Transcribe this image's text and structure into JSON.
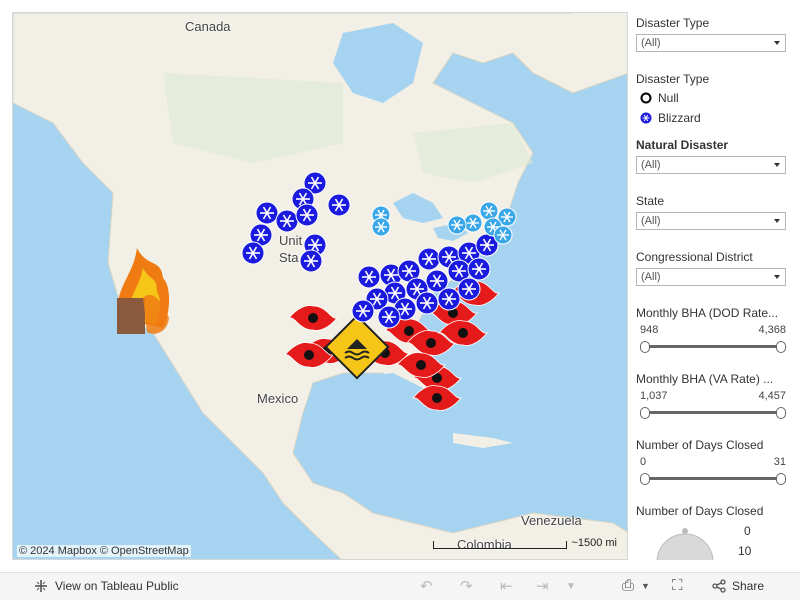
{
  "map": {
    "labels": {
      "canada": "Canada",
      "united_states_1": "Unit",
      "united_states_2": "Sta",
      "mexico": "Mexico",
      "venezuela": "Venezuela",
      "colombia": "Colombia"
    },
    "attribution": "© 2024 Mapbox © OpenStreetMap",
    "scale": "~1500 mi",
    "colors": {
      "water": "#a6d3ef",
      "land": "#f1efe6",
      "blizzard": "#1b1be0",
      "light_blizzard": "#3aa7e8",
      "hurricane": "#e51b1b"
    }
  },
  "panel": {
    "filter1": {
      "title": "Disaster Type",
      "value": "(All)"
    },
    "legend": {
      "title": "Disaster Type",
      "items": [
        {
          "label": "Null",
          "icon": "ring-icon"
        },
        {
          "label": "Blizzard",
          "icon": "snowflake-icon"
        }
      ]
    },
    "filter2": {
      "title": "Natural Disaster",
      "value": "(All)"
    },
    "filter3": {
      "title": "State",
      "value": "(All)"
    },
    "filter4": {
      "title": "Congressional District",
      "value": "(All)"
    },
    "slider1": {
      "title": "Monthly BHA (DOD Rate...",
      "min": "948",
      "max": "4,368"
    },
    "slider2": {
      "title": "Monthly BHA (VA Rate) ...",
      "min": "1,037",
      "max": "4,457"
    },
    "slider3": {
      "title": "Number of Days Closed",
      "min": "0",
      "max": "31"
    },
    "size_legend": {
      "title": "Number of Days Closed",
      "v1": "0",
      "v2": "10"
    }
  },
  "toolbar": {
    "view_label": "View on Tableau Public",
    "share_label": "Share"
  }
}
